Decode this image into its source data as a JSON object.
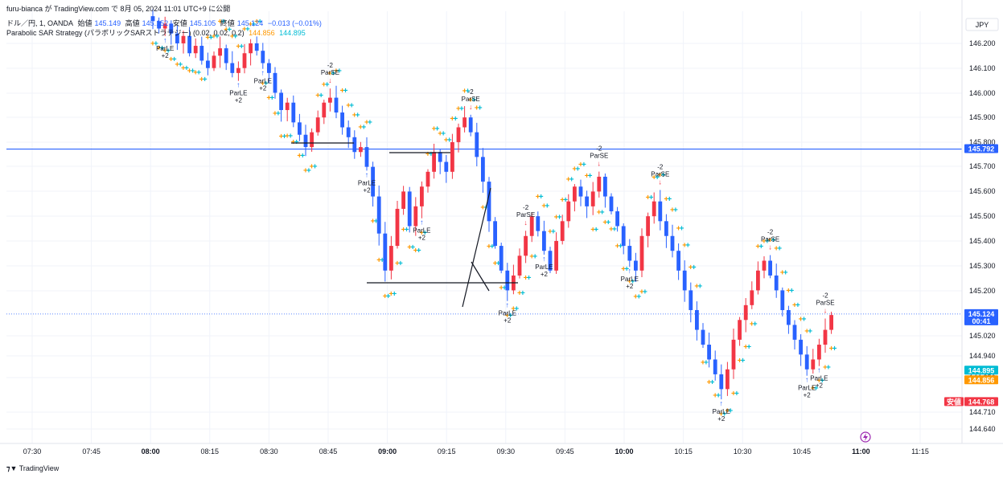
{
  "header": {
    "publisher_line": "furu-bianca が TradingView.com で 8月 05, 2024 11:01 UTC+9 に公開",
    "symbol_line": {
      "symbol": "ドル／円, 1, OANDA",
      "open_label": "始値",
      "open_value": "145.149",
      "high_label": "高値",
      "high_value": "145.152",
      "low_label": "安値",
      "low_value": "145.105",
      "close_label": "終値",
      "close_value": "145.124",
      "change": "−0.013 (−0.01%)"
    },
    "indicator_line": {
      "name": "Parabolic SAR Strategy (パラボリックSARストラテジー) (0.02, 0.02, 0.2)",
      "value_1": "144.856",
      "value_2": "144.895"
    }
  },
  "currency_button": "JPY",
  "footer_logo": "TradingView",
  "colors": {
    "up": "#f23645",
    "down": "#2962ff",
    "sar_orange": "#ff9800",
    "sar_teal": "#00bcd4",
    "hline": "#2962ff",
    "grid": "#f0f3fa"
  },
  "chart_data": {
    "type": "candlestick",
    "title": "",
    "xlabel": "",
    "ylabel": "",
    "ylim": [
      144.6,
      146.35
    ],
    "y_ticks": [
      "146.200",
      "146.100",
      "146.000",
      "145.900",
      "145.800",
      "145.700",
      "145.600",
      "145.500",
      "145.400",
      "145.300",
      "145.200",
      "145.020",
      "144.940",
      "144.856",
      "144.710",
      "144.640"
    ],
    "x_ticks": [
      {
        "label": "07:30",
        "bold": false
      },
      {
        "label": "07:45",
        "bold": false
      },
      {
        "label": "08:00",
        "bold": true
      },
      {
        "label": "08:15",
        "bold": false
      },
      {
        "label": "08:30",
        "bold": false
      },
      {
        "label": "08:45",
        "bold": false
      },
      {
        "label": "09:00",
        "bold": true
      },
      {
        "label": "09:15",
        "bold": false
      },
      {
        "label": "09:30",
        "bold": false
      },
      {
        "label": "09:45",
        "bold": false
      },
      {
        "label": "10:00",
        "bold": true
      },
      {
        "label": "10:15",
        "bold": false
      },
      {
        "label": "10:30",
        "bold": false
      },
      {
        "label": "10:45",
        "bold": false
      },
      {
        "label": "11:00",
        "bold": true
      },
      {
        "label": "11:15",
        "bold": false
      }
    ],
    "price_labels": [
      {
        "value": 145.792,
        "text": "145.792",
        "color": "#2962ff",
        "sub": ""
      },
      {
        "value": 145.124,
        "text": "145.124",
        "color": "#2962ff",
        "sub": "00:41"
      },
      {
        "value": 144.895,
        "text": "144.895",
        "color": "#00bcd4",
        "sub": ""
      },
      {
        "value": 144.856,
        "text": "144.856",
        "color": "#ff9800",
        "sub": ""
      },
      {
        "value": 144.768,
        "text": "144.768",
        "color": "#f23645",
        "sub": "",
        "prefix": "安値"
      }
    ],
    "horizontal_line": 145.792,
    "current_price_line": 145.124,
    "candles_path": [
      146.33,
      146.31,
      146.28,
      146.3,
      146.26,
      146.22,
      146.25,
      146.18,
      146.21,
      146.15,
      146.12,
      146.17,
      146.2,
      146.14,
      146.1,
      146.12,
      146.18,
      146.22,
      146.19,
      146.14,
      146.1,
      146.02,
      145.95,
      145.98,
      145.9,
      145.85,
      145.8,
      145.86,
      145.92,
      145.98,
      146.0,
      145.94,
      145.88,
      145.84,
      145.78,
      145.8,
      145.72,
      145.6,
      145.45,
      145.3,
      145.4,
      145.55,
      145.62,
      145.48,
      145.56,
      145.64,
      145.7,
      145.78,
      145.74,
      145.7,
      145.82,
      145.88,
      145.92,
      145.86,
      145.76,
      145.66,
      145.5,
      145.4,
      145.3,
      145.22,
      145.28,
      145.36,
      145.44,
      145.52,
      145.46,
      145.38,
      145.3,
      145.42,
      145.5,
      145.58,
      145.64,
      145.6,
      145.56,
      145.62,
      145.68,
      145.6,
      145.54,
      145.48,
      145.4,
      145.34,
      145.3,
      145.44,
      145.52,
      145.58,
      145.5,
      145.44,
      145.38,
      145.3,
      145.22,
      145.14,
      145.06,
      145.0,
      144.94,
      144.88,
      144.82,
      144.9,
      145.02,
      145.1,
      145.16,
      145.22,
      145.3,
      145.34,
      145.28,
      145.22,
      145.14,
      145.08,
      145.02,
      144.96,
      144.9,
      144.94,
      145.0,
      145.06,
      145.12
    ],
    "annotations": [
      {
        "i": 2,
        "label": "ParLE",
        "sub": "+2",
        "dir": "up"
      },
      {
        "i": 14,
        "label": "ParLE",
        "sub": "+2",
        "dir": "up"
      },
      {
        "i": 18,
        "label": "ParLE",
        "sub": "+2",
        "dir": "up"
      },
      {
        "i": 29,
        "label": "ParSE",
        "sub": "-2",
        "dir": "down"
      },
      {
        "i": 35,
        "label": "ParLE",
        "sub": "+2",
        "dir": "up"
      },
      {
        "i": 44,
        "label": "ParLE",
        "sub": "+2",
        "dir": "up"
      },
      {
        "i": 52,
        "label": "ParSE",
        "sub": "-2",
        "dir": "down"
      },
      {
        "i": 58,
        "label": "ParLE",
        "sub": "+2",
        "dir": "up"
      },
      {
        "i": 61,
        "label": "ParSE",
        "sub": "-2",
        "dir": "down"
      },
      {
        "i": 64,
        "label": "ParLE",
        "sub": "+2",
        "dir": "up"
      },
      {
        "i": 73,
        "label": "ParSE",
        "sub": "-2",
        "dir": "down"
      },
      {
        "i": 78,
        "label": "ParLE",
        "sub": "+2",
        "dir": "up"
      },
      {
        "i": 83,
        "label": "ParSE",
        "sub": "-2",
        "dir": "down"
      },
      {
        "i": 93,
        "label": "ParLE",
        "sub": "+2",
        "dir": "up"
      },
      {
        "i": 101,
        "label": "ParSE",
        "sub": "-2",
        "dir": "down"
      },
      {
        "i": 107,
        "label": "ParLE",
        "sub": "+2",
        "dir": "up"
      },
      {
        "i": 110,
        "label": "ParSE",
        "sub": "-2",
        "dir": "down"
      },
      {
        "i": 109,
        "label": "ParLE",
        "sub": "+2",
        "dir": "up"
      }
    ]
  }
}
